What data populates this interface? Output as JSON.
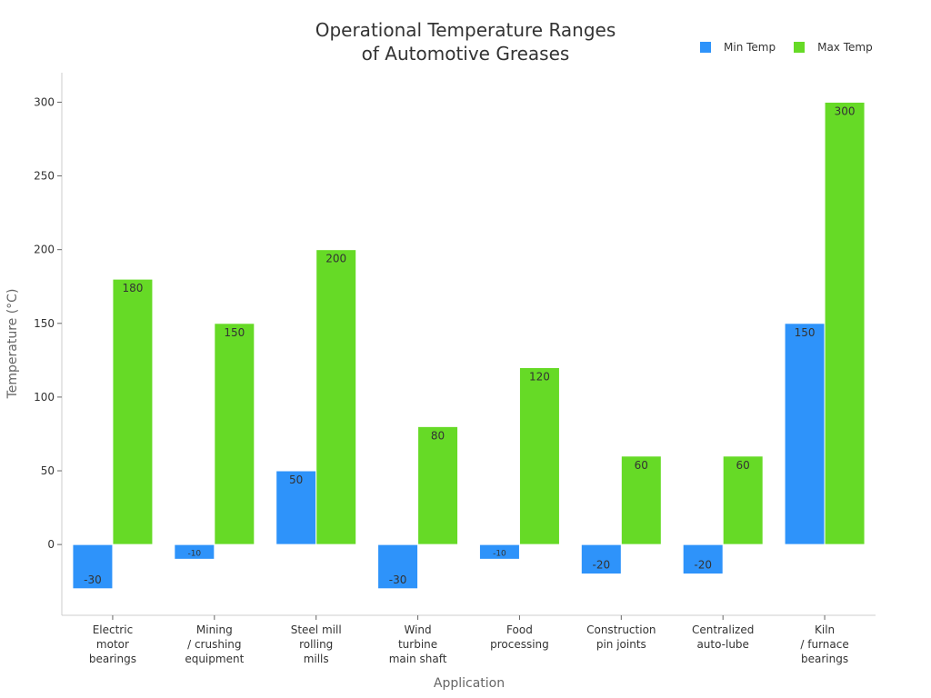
{
  "chart_data": {
    "type": "bar",
    "title_lines": [
      "Operational Temperature Ranges",
      "of Automotive Greases"
    ],
    "xlabel": "Application",
    "ylabel": "Temperature (°C)",
    "categories": [
      [
        "Electric",
        "motor",
        "bearings"
      ],
      [
        "Mining",
        "/ crushing",
        "equipment"
      ],
      [
        "Steel mill",
        "rolling",
        "mills"
      ],
      [
        "Wind",
        "turbine",
        "main shaft"
      ],
      [
        "Food",
        "processing"
      ],
      [
        "Construction",
        "pin joints"
      ],
      [
        "Centralized",
        "auto-lube"
      ],
      [
        "Kiln",
        "/ furnace",
        "bearings"
      ]
    ],
    "series": [
      {
        "name": "Min Temp",
        "color": "#2e93fa",
        "values": [
          -30,
          -10,
          50,
          -30,
          -10,
          -20,
          -20,
          150
        ]
      },
      {
        "name": "Max Temp",
        "color": "#66da26",
        "values": [
          180,
          150,
          200,
          80,
          120,
          60,
          60,
          300
        ]
      }
    ],
    "yticks": [
      0,
      50,
      100,
      150,
      200,
      250,
      300
    ],
    "ylim": [
      -48,
      320
    ],
    "grid": false,
    "legend_position": "top-right"
  }
}
